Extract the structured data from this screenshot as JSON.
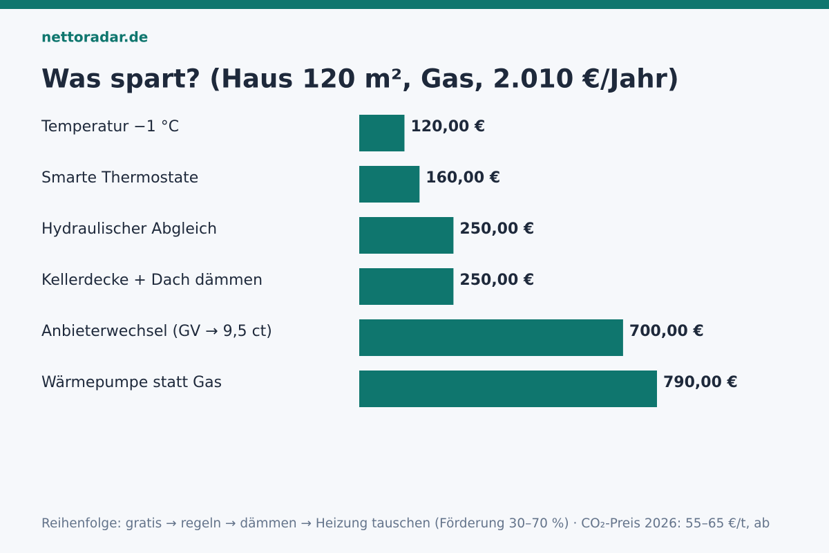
{
  "chart_data": {
    "type": "bar",
    "orientation": "horizontal",
    "brand": "nettoradar.de",
    "title": "Was spart? (Haus 120 m², Gas, 2.010 €/Jahr)",
    "categories": [
      "Temperatur −1 °C",
      "Smarte Thermostate",
      "Hydraulischer Abgleich",
      "Kellerdecke + Dach dämmen",
      "Anbieterwechsel (GV → 9,5 ct)",
      "Wärmepumpe statt Gas"
    ],
    "values": [
      120,
      160,
      250,
      250,
      700,
      790
    ],
    "value_labels": [
      "120,00 €",
      "160,00 €",
      "250,00 €",
      "250,00 €",
      "700,00 €",
      "790,00 €"
    ],
    "color": "#0f766e",
    "note": "Reihenfolge: gratis → regeln → dämmen → Heizung tauschen (Förderung 30–70 %) · CO₂-Preis 2026: 55–65 €/t, ab"
  }
}
